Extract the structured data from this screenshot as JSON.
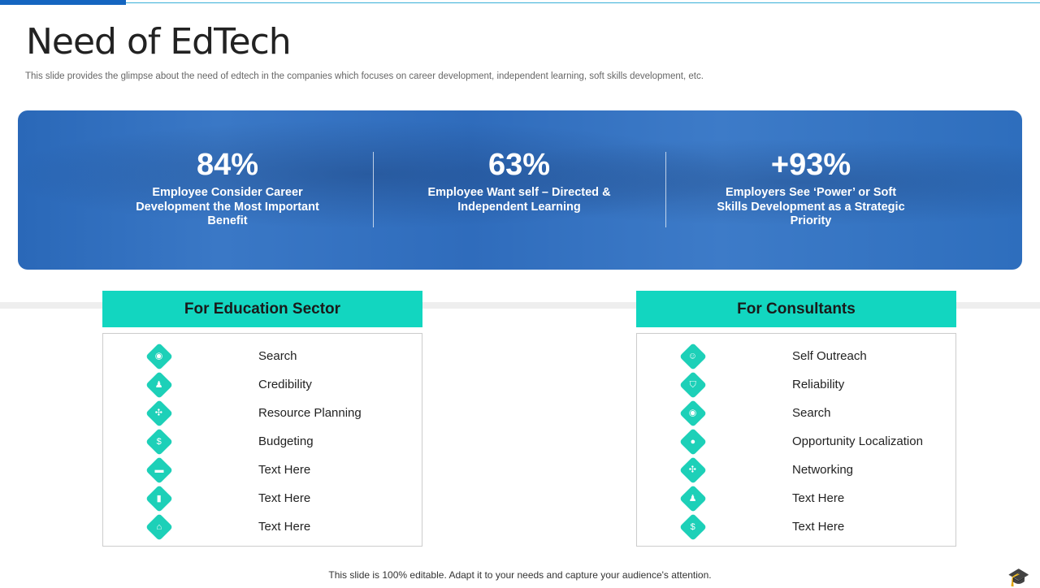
{
  "title": "Need of EdTech",
  "subtitle": "This slide provides the glimpse about the need of edtech in the companies which focuses on career development, independent learning, soft skills development, etc.",
  "stats": [
    {
      "value": "84%",
      "text": "Employee Consider Career Development the Most Important Benefit"
    },
    {
      "value": "63%",
      "text": "Employee Want self – Directed & Independent Learning"
    },
    {
      "value": "+93%",
      "text": "Employers See ‘Power’ or Soft Skills Development as a Strategic Priority"
    }
  ],
  "education": {
    "heading": "For Education Sector",
    "items": [
      {
        "label": "Search",
        "icon": "search-icon"
      },
      {
        "label": "Credibility",
        "icon": "person-icon"
      },
      {
        "label": "Resource Planning",
        "icon": "network-icon"
      },
      {
        "label": "Budgeting",
        "icon": "money-bag-icon"
      },
      {
        "label": "Text Here",
        "icon": "graduation-cap-icon"
      },
      {
        "label": "Text Here",
        "icon": "book-icon"
      },
      {
        "label": "Text Here",
        "icon": "school-icon"
      }
    ]
  },
  "consultants": {
    "heading": "For Consultants",
    "items": [
      {
        "label": "Self Outreach",
        "icon": "user-circle-icon"
      },
      {
        "label": "Reliability",
        "icon": "shield-icon"
      },
      {
        "label": "Search",
        "icon": "search-icon"
      },
      {
        "label": "Opportunity Localization",
        "icon": "location-pin-icon"
      },
      {
        "label": "Networking",
        "icon": "network-icon"
      },
      {
        "label": "Text Here",
        "icon": "person-icon"
      },
      {
        "label": "Text Here",
        "icon": "money-bag-icon"
      }
    ]
  },
  "footer": "This slide is 100% editable. Adapt it to your needs and capture your audience's attention.",
  "colors": {
    "accent": "#12d6c0",
    "banner": "#2e6ebd",
    "topbar": "#1565c0"
  }
}
